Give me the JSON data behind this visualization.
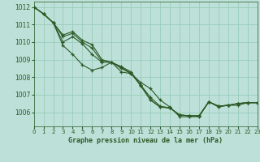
{
  "title": "Graphe pression niveau de la mer (hPa)",
  "bg_color": "#bde0d8",
  "grid_color": "#99ccbb",
  "line_color": "#2d5a27",
  "xlim": [
    0,
    23
  ],
  "ylim": [
    1005.2,
    1012.3
  ],
  "yticks": [
    1006,
    1007,
    1008,
    1009,
    1010,
    1011,
    1012
  ],
  "xticks": [
    0,
    1,
    2,
    3,
    4,
    5,
    6,
    7,
    8,
    9,
    10,
    11,
    12,
    13,
    14,
    15,
    16,
    17,
    18,
    19,
    20,
    21,
    22,
    23
  ],
  "lines": [
    [
      1012.0,
      1011.6,
      1011.1,
      1009.8,
      1009.3,
      1008.7,
      1008.4,
      1008.55,
      1008.85,
      1008.3,
      1008.2,
      1007.7,
      1007.35,
      1006.7,
      1006.3,
      1005.75,
      1005.75,
      1005.75,
      1006.6,
      1006.3,
      1006.4,
      1006.4,
      1006.55,
      1006.55
    ],
    [
      1012.0,
      1011.6,
      1011.1,
      1010.0,
      1010.3,
      1009.9,
      1009.3,
      1008.85,
      1008.85,
      1008.5,
      1008.2,
      1007.55,
      1006.85,
      1006.35,
      1006.25,
      1005.85,
      1005.8,
      1005.8,
      1006.6,
      1006.35,
      1006.4,
      1006.5,
      1006.55,
      1006.55
    ],
    [
      1012.0,
      1011.6,
      1011.1,
      1010.3,
      1010.5,
      1010.0,
      1009.65,
      1008.9,
      1008.85,
      1008.55,
      1008.25,
      1007.5,
      1006.7,
      1006.3,
      1006.25,
      1005.85,
      1005.8,
      1005.8,
      1006.6,
      1006.35,
      1006.4,
      1006.5,
      1006.55,
      1006.55
    ],
    [
      1012.0,
      1011.6,
      1011.1,
      1010.4,
      1010.6,
      1010.1,
      1009.85,
      1009.0,
      1008.85,
      1008.6,
      1008.3,
      1007.55,
      1006.7,
      1006.3,
      1006.25,
      1005.85,
      1005.8,
      1005.8,
      1006.6,
      1006.35,
      1006.4,
      1006.5,
      1006.55,
      1006.55
    ]
  ]
}
